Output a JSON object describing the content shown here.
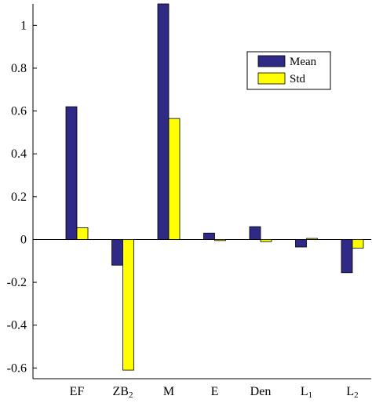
{
  "chart_data": {
    "type": "bar",
    "categories": [
      {
        "base": "EF",
        "sub": ""
      },
      {
        "base": "ZB",
        "sub": "2"
      },
      {
        "base": "M",
        "sub": ""
      },
      {
        "base": "E",
        "sub": ""
      },
      {
        "base": "Den",
        "sub": ""
      },
      {
        "base": "L",
        "sub": "1"
      },
      {
        "base": "L",
        "sub": "2"
      }
    ],
    "series": [
      {
        "name": "Mean",
        "color": "#2e2a86",
        "values": [
          0.62,
          -0.12,
          1.1,
          0.03,
          0.06,
          -0.035,
          -0.155
        ]
      },
      {
        "name": "Std",
        "color": "#ffff00",
        "values": [
          0.055,
          -0.61,
          0.565,
          -0.005,
          -0.01,
          0.005,
          -0.04
        ]
      }
    ],
    "ylim": [
      -0.65,
      1.1
    ],
    "yticks": [
      {
        "v": 1,
        "label": "1"
      },
      {
        "v": 0.8,
        "label": "0.8"
      },
      {
        "v": 0.6,
        "label": "0.6"
      },
      {
        "v": 0.4,
        "label": "0.4"
      },
      {
        "v": 0.2,
        "label": "0.2"
      },
      {
        "v": 0,
        "label": "0"
      },
      {
        "v": -0.2,
        "label": "-0.2"
      },
      {
        "v": -0.4,
        "label": "-0.4"
      },
      {
        "v": -0.6,
        "label": "-0.6"
      }
    ],
    "title": "",
    "xlabel": "",
    "ylabel": "",
    "grid": false,
    "legend_position": "top-right"
  }
}
